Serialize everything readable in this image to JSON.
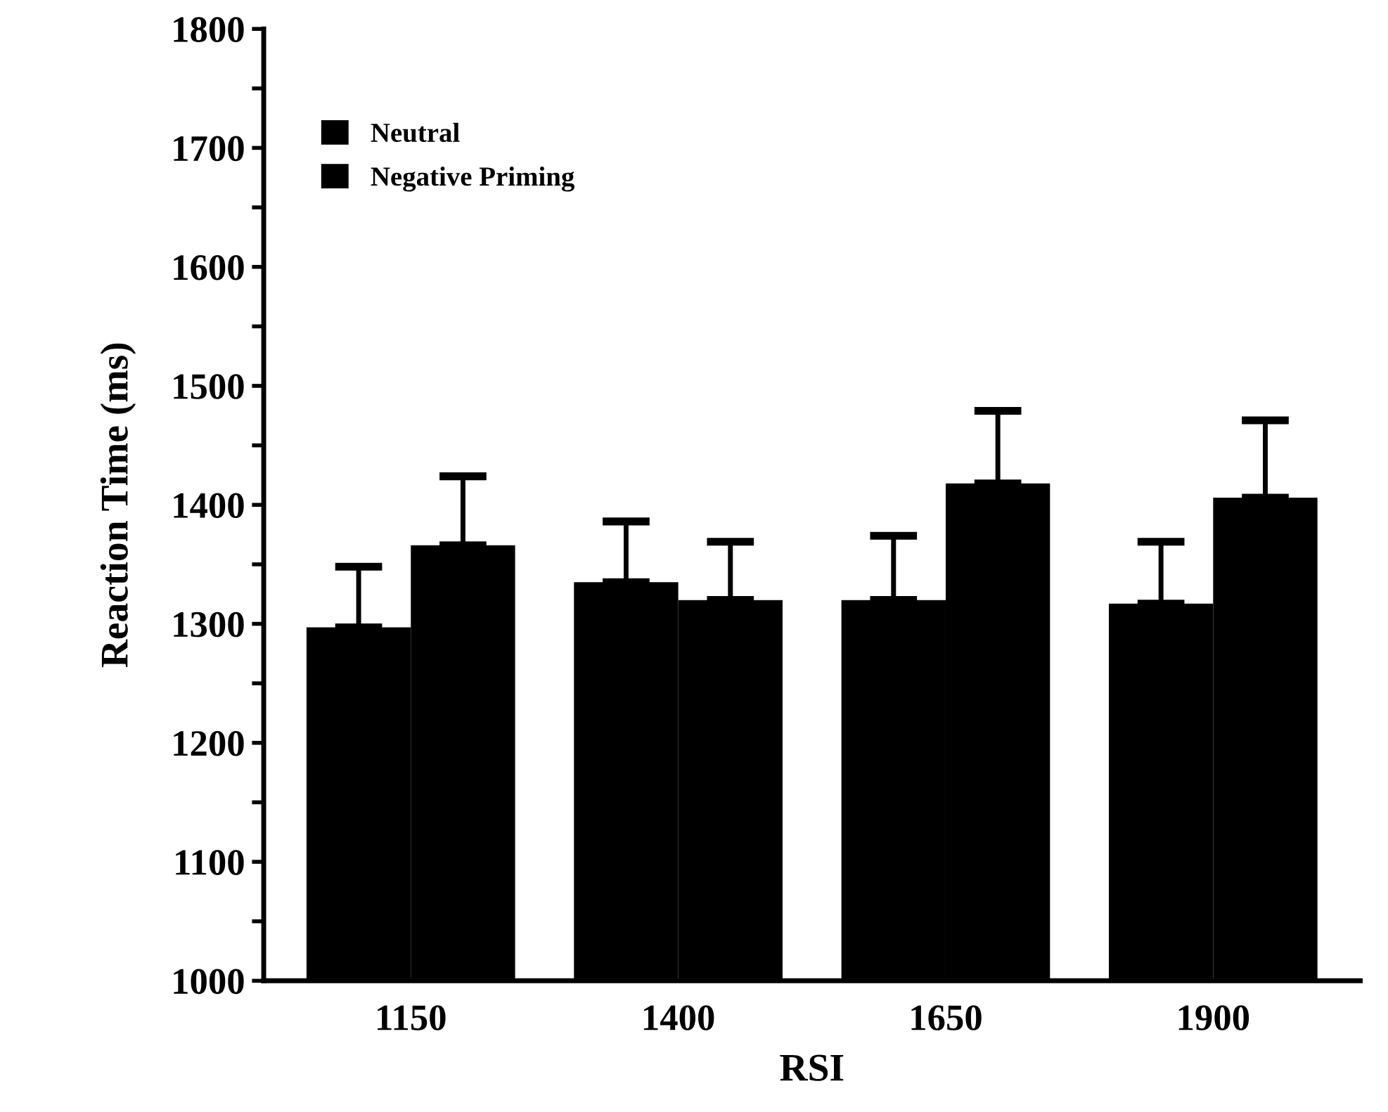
{
  "chart_data": {
    "type": "bar",
    "xlabel": "RSI",
    "ylabel": "Reaction Time (ms)",
    "categories": [
      "1150",
      "1400",
      "1650",
      "1900"
    ],
    "series": [
      {
        "name": "Neutral",
        "color": "#000000",
        "values": [
          1297,
          1335,
          1320,
          1317
        ],
        "errors": [
          [
            1297,
            1348
          ],
          [
            1335,
            1386
          ],
          [
            1320,
            1374
          ],
          [
            1317,
            1369
          ]
        ]
      },
      {
        "name": "Negative Priming",
        "color": "#000000",
        "values": [
          1366,
          1320,
          1418,
          1406
        ],
        "errors": [
          [
            1366,
            1424
          ],
          [
            1320,
            1369
          ],
          [
            1418,
            1479
          ],
          [
            1406,
            1471
          ]
        ]
      }
    ],
    "ylim": [
      1000,
      1800
    ],
    "yticks": [
      1000,
      {
        "value": 1050,
        "label": null
      },
      1100,
      {
        "value": 1150,
        "label": null
      },
      1200,
      {
        "value": 1250,
        "label": null
      },
      1300,
      {
        "value": 1350,
        "label": null
      },
      1400,
      {
        "value": 1450,
        "label": null
      },
      1500,
      {
        "value": 1550,
        "label": null
      },
      1600,
      {
        "value": 1650,
        "label": null
      },
      1700,
      {
        "value": 1750,
        "label": null
      },
      1800
    ],
    "grid": false,
    "legend": "top left"
  }
}
